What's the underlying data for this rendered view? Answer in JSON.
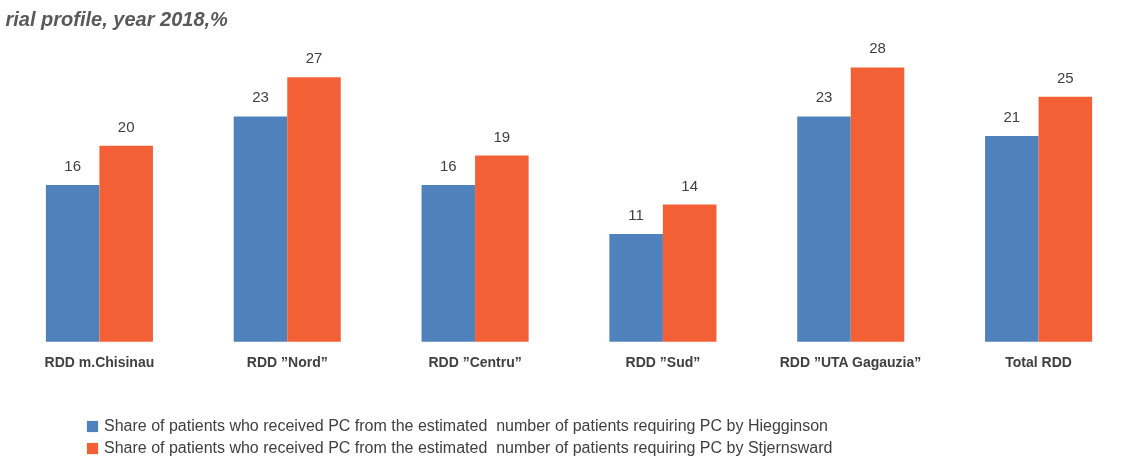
{
  "chart_data": {
    "type": "bar",
    "title": "rial profile, year 2018,%",
    "categories": [
      "RDD m.Chisinau",
      "RDD ”Nord”",
      "RDD ”Centru”",
      "RDD ”Sud”",
      "RDD ”UTA Gagauzia”",
      "Total RDD"
    ],
    "series": [
      {
        "name": "Share of patients who received PC from the estimated  number of patients requiring PC by Hiegginson",
        "color": "#4f81bd",
        "values": [
          16,
          23,
          16,
          11,
          23,
          21
        ]
      },
      {
        "name": "Share of patients who received PC from the estimated  number of patients requiring PC by Stjernsward",
        "color": "#f46036",
        "values": [
          20,
          27,
          19,
          14,
          28,
          25
        ]
      }
    ],
    "data_labels": true,
    "legend": "bottom"
  }
}
